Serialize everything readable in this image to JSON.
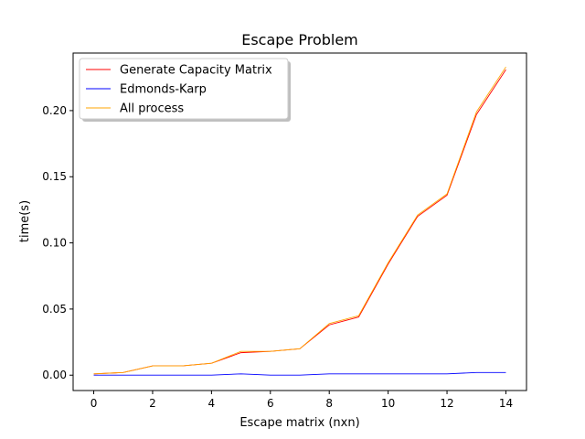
{
  "chart_data": {
    "type": "line",
    "title": "Escape Problem",
    "xlabel": "Escape matrix (nxn)",
    "ylabel": "time(s)",
    "x": [
      0,
      1,
      2,
      3,
      4,
      5,
      6,
      7,
      8,
      9,
      10,
      11,
      12,
      13,
      14
    ],
    "xlim": [
      -0.7,
      14.7
    ],
    "ylim": [
      -0.0116,
      0.2435
    ],
    "xticks": [
      0,
      2,
      4,
      6,
      8,
      10,
      12,
      14
    ],
    "yticks": [
      0.0,
      0.05,
      0.1,
      0.15,
      0.2
    ],
    "xtick_labels": [
      "0",
      "2",
      "4",
      "6",
      "8",
      "10",
      "12",
      "14"
    ],
    "ytick_labels": [
      "0.00",
      "0.05",
      "0.10",
      "0.15",
      "0.20"
    ],
    "grid": false,
    "legend_position": "upper-left",
    "series": [
      {
        "name": "Generate Capacity Matrix",
        "color": "#ff0000",
        "values": [
          0.001,
          0.002,
          0.007,
          0.007,
          0.009,
          0.017,
          0.018,
          0.02,
          0.038,
          0.044,
          0.084,
          0.12,
          0.136,
          0.197,
          0.231
        ]
      },
      {
        "name": "Edmonds-Karp",
        "color": "#0000ff",
        "values": [
          0.0,
          0.0,
          0.0,
          0.0,
          0.0,
          0.001,
          0.0,
          0.0,
          0.001,
          0.001,
          0.001,
          0.001,
          0.001,
          0.002,
          0.002
        ]
      },
      {
        "name": "All process",
        "color": "#ffa500",
        "values": [
          0.001,
          0.002,
          0.007,
          0.007,
          0.009,
          0.018,
          0.018,
          0.02,
          0.039,
          0.045,
          0.085,
          0.121,
          0.137,
          0.199,
          0.233
        ]
      }
    ]
  }
}
